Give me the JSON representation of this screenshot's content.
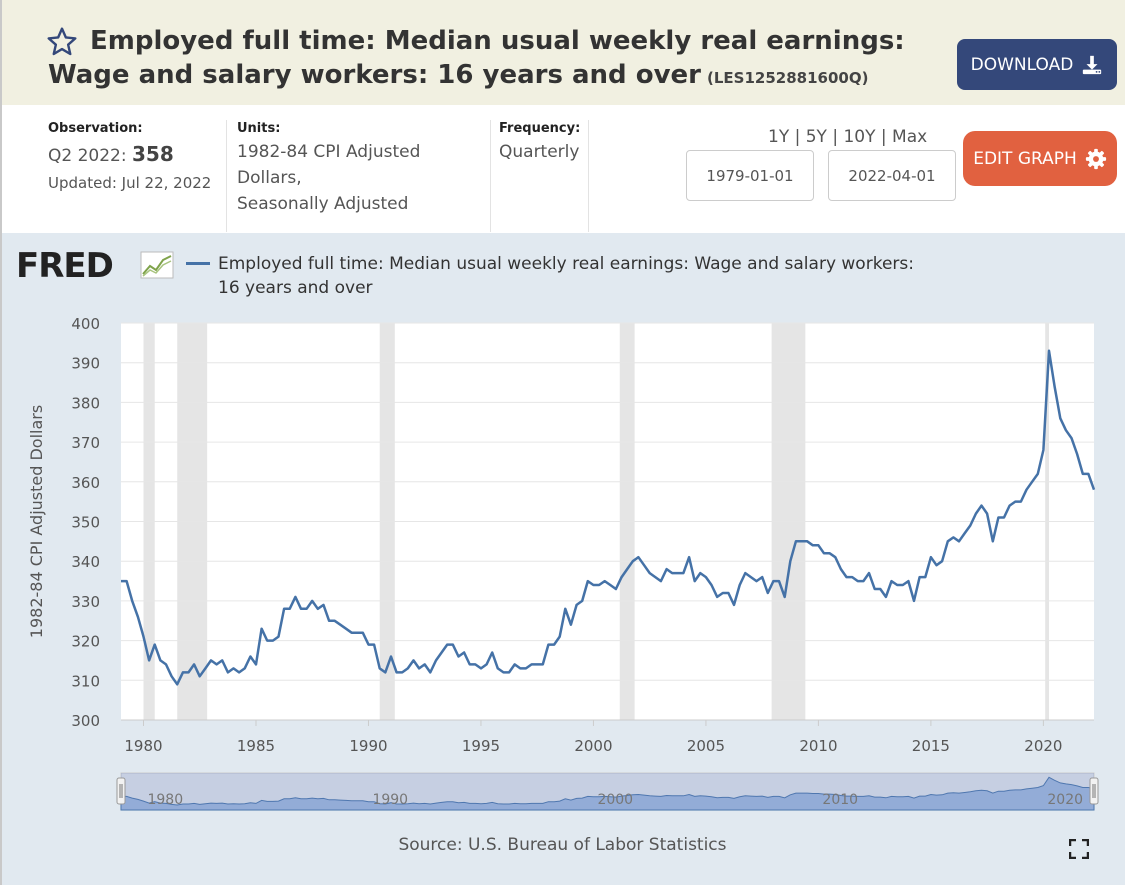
{
  "header": {
    "title": "Employed full time: Median usual weekly real earnings: Wage and salary workers: 16 years and over",
    "series_id": "(LES1252881600Q)",
    "download_label": "DOWNLOAD"
  },
  "info": {
    "observation_label": "Observation:",
    "observation_period": "Q2 2022:",
    "observation_value": "358",
    "updated": "Updated: Jul 22, 2022",
    "units_label": "Units:",
    "units_line1": "1982-84 CPI Adjusted",
    "units_line2": "Dollars,",
    "units_line3": "Seasonally Adjusted",
    "frequency_label": "Frequency:",
    "frequency_value": "Quarterly",
    "range_links": "1Y | 5Y | 10Y | Max",
    "start_date": "1979-01-01",
    "end_date": "2022-04-01",
    "edit_label": "EDIT GRAPH"
  },
  "graph": {
    "logo_text": "FRED",
    "source": "Source: U.S. Bureau of Labor Statistics"
  },
  "colors": {
    "series": "#4572a7",
    "download": "#34487a",
    "edit": "#e16140",
    "recession": "#e5e5e5"
  },
  "chart_data": {
    "type": "line",
    "title": "",
    "legend": "Employed full time: Median usual weekly real earnings: Wage and salary workers: 16 years and over",
    "xlabel": "",
    "ylabel": "1982-84 CPI Adjusted Dollars",
    "xlim": [
      1979.0,
      2022.25
    ],
    "ylim": [
      300,
      400
    ],
    "yticks": [
      300,
      310,
      320,
      330,
      340,
      350,
      360,
      370,
      380,
      390,
      400
    ],
    "xticks": [
      1980,
      1985,
      1990,
      1995,
      2000,
      2005,
      2010,
      2015,
      2020
    ],
    "navigator_ticks": [
      "1980",
      "1990",
      "2000",
      "2010",
      "2020"
    ],
    "recessions": [
      [
        1980.0,
        1980.5
      ],
      [
        1981.5,
        1982.83
      ],
      [
        1990.5,
        1991.17
      ],
      [
        2001.17,
        2001.83
      ],
      [
        2007.92,
        2009.42
      ],
      [
        2020.08,
        2020.25
      ]
    ],
    "series": [
      {
        "name": "LES1252881600Q",
        "x": [
          1979.0,
          1979.25,
          1979.5,
          1979.75,
          1980.0,
          1980.25,
          1980.5,
          1980.75,
          1981.0,
          1981.25,
          1981.5,
          1981.75,
          1982.0,
          1982.25,
          1982.5,
          1982.75,
          1983.0,
          1983.25,
          1983.5,
          1983.75,
          1984.0,
          1984.25,
          1984.5,
          1984.75,
          1985.0,
          1985.25,
          1985.5,
          1985.75,
          1986.0,
          1986.25,
          1986.5,
          1986.75,
          1987.0,
          1987.25,
          1987.5,
          1987.75,
          1988.0,
          1988.25,
          1988.5,
          1988.75,
          1989.0,
          1989.25,
          1989.5,
          1989.75,
          1990.0,
          1990.25,
          1990.5,
          1990.75,
          1991.0,
          1991.25,
          1991.5,
          1991.75,
          1992.0,
          1992.25,
          1992.5,
          1992.75,
          1993.0,
          1993.25,
          1993.5,
          1993.75,
          1994.0,
          1994.25,
          1994.5,
          1994.75,
          1995.0,
          1995.25,
          1995.5,
          1995.75,
          1996.0,
          1996.25,
          1996.5,
          1996.75,
          1997.0,
          1997.25,
          1997.5,
          1997.75,
          1998.0,
          1998.25,
          1998.5,
          1998.75,
          1999.0,
          1999.25,
          1999.5,
          1999.75,
          2000.0,
          2000.25,
          2000.5,
          2000.75,
          2001.0,
          2001.25,
          2001.5,
          2001.75,
          2002.0,
          2002.25,
          2002.5,
          2002.75,
          2003.0,
          2003.25,
          2003.5,
          2003.75,
          2004.0,
          2004.25,
          2004.5,
          2004.75,
          2005.0,
          2005.25,
          2005.5,
          2005.75,
          2006.0,
          2006.25,
          2006.5,
          2006.75,
          2007.0,
          2007.25,
          2007.5,
          2007.75,
          2008.0,
          2008.25,
          2008.5,
          2008.75,
          2009.0,
          2009.25,
          2009.5,
          2009.75,
          2010.0,
          2010.25,
          2010.5,
          2010.75,
          2011.0,
          2011.25,
          2011.5,
          2011.75,
          2012.0,
          2012.25,
          2012.5,
          2012.75,
          2013.0,
          2013.25,
          2013.5,
          2013.75,
          2014.0,
          2014.25,
          2014.5,
          2014.75,
          2015.0,
          2015.25,
          2015.5,
          2015.75,
          2016.0,
          2016.25,
          2016.5,
          2016.75,
          2017.0,
          2017.25,
          2017.5,
          2017.75,
          2018.0,
          2018.25,
          2018.5,
          2018.75,
          2019.0,
          2019.25,
          2019.5,
          2019.75,
          2020.0,
          2020.25,
          2020.5,
          2020.75,
          2021.0,
          2021.25,
          2021.5,
          2021.75,
          2022.0,
          2022.25
        ],
        "values": [
          335,
          335,
          330,
          326,
          321,
          315,
          319,
          315,
          314,
          311,
          309,
          312,
          312,
          314,
          311,
          313,
          315,
          314,
          315,
          312,
          313,
          312,
          313,
          316,
          314,
          323,
          320,
          320,
          321,
          328,
          328,
          331,
          328,
          328,
          330,
          328,
          329,
          325,
          325,
          324,
          323,
          322,
          322,
          322,
          319,
          319,
          313,
          312,
          316,
          312,
          312,
          313,
          315,
          313,
          314,
          312,
          315,
          317,
          319,
          319,
          316,
          317,
          314,
          314,
          313,
          314,
          317,
          313,
          312,
          312,
          314,
          313,
          313,
          314,
          314,
          314,
          319,
          319,
          321,
          328,
          324,
          329,
          330,
          335,
          334,
          334,
          335,
          334,
          333,
          336,
          338,
          340,
          341,
          339,
          337,
          336,
          335,
          338,
          337,
          337,
          337,
          341,
          335,
          337,
          336,
          334,
          331,
          332,
          332,
          329,
          334,
          337,
          336,
          335,
          336,
          332,
          335,
          335,
          331,
          340,
          345,
          345,
          345,
          344,
          344,
          342,
          342,
          341,
          338,
          336,
          336,
          335,
          335,
          337,
          333,
          333,
          331,
          335,
          334,
          334,
          335,
          330,
          336,
          336,
          341,
          339,
          340,
          345,
          346,
          345,
          347,
          349,
          352,
          354,
          352,
          345,
          351,
          351,
          354,
          355,
          355,
          358,
          360,
          362,
          368,
          393,
          384,
          376,
          373,
          371,
          367,
          362,
          362,
          358
        ]
      }
    ]
  }
}
